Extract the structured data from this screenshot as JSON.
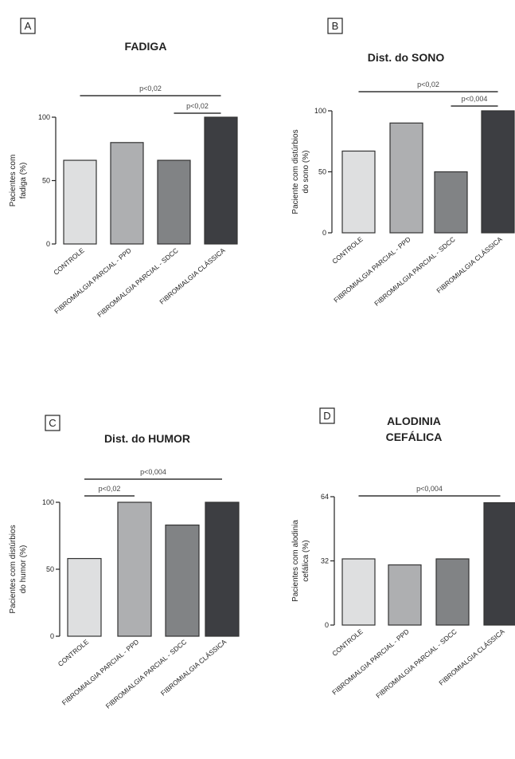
{
  "figure": {
    "categories": [
      "CONTROLE",
      "FIBROMIALGIA PARCIAL - PPD",
      "FIBROMIALGIA PARCIAL - SDCC",
      "FIBROMIALGIA CLÁSSICA"
    ],
    "colors": [
      "#dedfe0",
      "#aeafb1",
      "#818385",
      "#3d3e42"
    ]
  },
  "chart_data": [
    {
      "panel": "A",
      "type": "bar",
      "title": [
        "FADIGA"
      ],
      "ylabel": [
        "Pacientes com",
        "fadiga (%)"
      ],
      "categories": [
        "CONTROLE",
        "FIBROMIALGIA PARCIAL - PPD",
        "FIBROMIALGIA PARCIAL - SDCC",
        "FIBROMIALGIA CLÁSSICA"
      ],
      "values": [
        66,
        80,
        66,
        100
      ],
      "ylim": [
        0,
        100
      ],
      "yticks": [
        0,
        50,
        100
      ],
      "significance": [
        {
          "label": "p<0,02",
          "from": 0,
          "to": 3
        },
        {
          "label": "p<0,02",
          "from": 2,
          "to": 3
        }
      ]
    },
    {
      "panel": "B",
      "type": "bar",
      "title": [
        "Dist. do SONO"
      ],
      "ylabel": [
        "Paciente com distúrbios",
        "do sono (%)"
      ],
      "categories": [
        "CONTROLE",
        "FIBROMIALGIA PARCIAL - PPD",
        "FIBROMIALGIA PARCIAL - SDCC",
        "FIBROMIALGIA CLÁSSICA"
      ],
      "values": [
        67,
        90,
        50,
        100
      ],
      "ylim": [
        0,
        100
      ],
      "yticks": [
        0,
        50,
        100
      ],
      "significance": [
        {
          "label": "p<0,02",
          "from": 0,
          "to": 3
        },
        {
          "label": "p<0,004",
          "from": 2,
          "to": 3
        }
      ]
    },
    {
      "panel": "C",
      "type": "bar",
      "title": [
        "Dist. do HUMOR"
      ],
      "ylabel": [
        "Pacientes com distúrbios",
        "do humor (%)"
      ],
      "categories": [
        "CONTROLE",
        "FIBROMIALGIA PARCIAL - PPD",
        "FIBROMIALGIA PARCIAL - SDCC",
        "FIBROMIALGIA CLÁSSICA"
      ],
      "values": [
        58,
        100,
        83,
        100
      ],
      "ylim": [
        0,
        100
      ],
      "yticks": [
        0,
        50,
        100
      ],
      "significance": [
        {
          "label": "p<0,004",
          "from": 0,
          "to": 3
        },
        {
          "label": "p<0,02",
          "from": 0,
          "to": 1
        }
      ]
    },
    {
      "panel": "D",
      "type": "bar",
      "title": [
        "ALODINIA",
        "CEFÁLICA"
      ],
      "ylabel": [
        "Pacientes com alodinia",
        "cefálica (%)"
      ],
      "categories": [
        "CONTROLE",
        "FIBROMIALGIA PARCIAL - PPD",
        "FIBROMIALGIA PARCIAL - SDCC",
        "FIBROMIALGIA CLÁSSICA"
      ],
      "values": [
        33,
        30,
        33,
        61
      ],
      "ylim": [
        0,
        64
      ],
      "yticks": [
        0,
        32,
        64
      ],
      "significance": [
        {
          "label": "p<0,004",
          "from": 0,
          "to": 3
        }
      ]
    }
  ]
}
